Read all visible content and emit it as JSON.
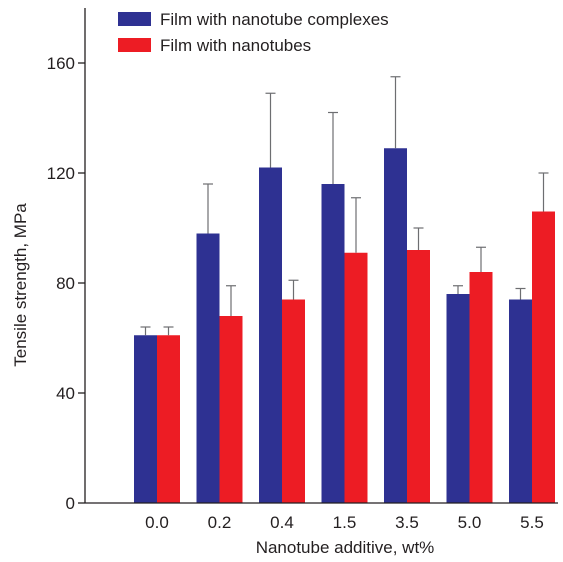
{
  "chart_data": {
    "type": "bar",
    "title": "",
    "xlabel": "Nanotube additive, wt%",
    "ylabel": "Tensile strength, MPa",
    "ylim": [
      0,
      180
    ],
    "yticks": [
      "0",
      "40",
      "80",
      "120",
      "160"
    ],
    "categories": [
      "0.0",
      "0.2",
      "0.4",
      "1.5",
      "3.5",
      "5.0",
      "5.5"
    ],
    "legend_position": "top-left",
    "grid": false,
    "error_bars": "upper",
    "series": [
      {
        "name": "Film with nanotube complexes",
        "color": "#2e3192",
        "values": [
          61,
          98,
          122,
          116,
          129,
          76,
          74
        ],
        "errors": [
          3,
          18,
          27,
          26,
          26,
          3,
          4
        ]
      },
      {
        "name": "Film with nanotubes",
        "color": "#ed1c24",
        "values": [
          61,
          68,
          74,
          91,
          92,
          84,
          106
        ],
        "errors": [
          3,
          11,
          7,
          20,
          8,
          9,
          14
        ]
      }
    ]
  }
}
